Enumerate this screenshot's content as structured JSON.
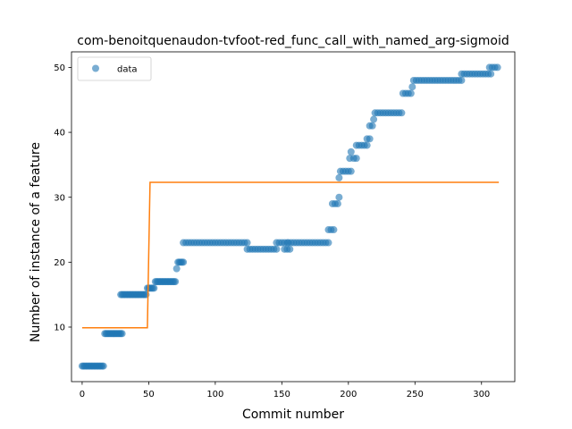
{
  "chart_data": {
    "type": "scatter",
    "title": "com-benoitquenaudon-tvfoot-red_func_call_with_named_arg-sigmoid",
    "xlabel": "Commit number",
    "ylabel": "Number of instance of a feature",
    "xlim": [
      -8,
      325
    ],
    "ylim": [
      1.6,
      52.4
    ],
    "xticks": [
      0,
      50,
      100,
      150,
      200,
      250,
      300
    ],
    "yticks": [
      10,
      20,
      30,
      40,
      50
    ],
    "grid": false,
    "legend": {
      "position": "upper left",
      "entries": [
        "data"
      ]
    },
    "colors": {
      "data": "#1f77b4",
      "fit": "#ff7f0e"
    },
    "series": [
      {
        "name": "data",
        "kind": "scatter",
        "points": [
          [
            0,
            4
          ],
          [
            1,
            4
          ],
          [
            2,
            4
          ],
          [
            3,
            4
          ],
          [
            4,
            4
          ],
          [
            5,
            4
          ],
          [
            6,
            4
          ],
          [
            7,
            4
          ],
          [
            8,
            4
          ],
          [
            9,
            4
          ],
          [
            10,
            4
          ],
          [
            11,
            4
          ],
          [
            12,
            4
          ],
          [
            13,
            4
          ],
          [
            14,
            4
          ],
          [
            15,
            4
          ],
          [
            16,
            4
          ],
          [
            17,
            9
          ],
          [
            18,
            9
          ],
          [
            19,
            9
          ],
          [
            20,
            9
          ],
          [
            21,
            9
          ],
          [
            22,
            9
          ],
          [
            23,
            9
          ],
          [
            24,
            9
          ],
          [
            25,
            9
          ],
          [
            26,
            9
          ],
          [
            27,
            9
          ],
          [
            28,
            9
          ],
          [
            29,
            9
          ],
          [
            30,
            9
          ],
          [
            29,
            15
          ],
          [
            30,
            15
          ],
          [
            31,
            15
          ],
          [
            32,
            15
          ],
          [
            33,
            15
          ],
          [
            34,
            15
          ],
          [
            35,
            15
          ],
          [
            36,
            15
          ],
          [
            37,
            15
          ],
          [
            38,
            15
          ],
          [
            39,
            15
          ],
          [
            40,
            15
          ],
          [
            41,
            15
          ],
          [
            42,
            15
          ],
          [
            43,
            15
          ],
          [
            44,
            15
          ],
          [
            45,
            15
          ],
          [
            46,
            15
          ],
          [
            47,
            15
          ],
          [
            48,
            15
          ],
          [
            49,
            16
          ],
          [
            50,
            16
          ],
          [
            51,
            16
          ],
          [
            52,
            16
          ],
          [
            53,
            16
          ],
          [
            54,
            16
          ],
          [
            55,
            17
          ],
          [
            56,
            17
          ],
          [
            57,
            17
          ],
          [
            58,
            17
          ],
          [
            59,
            17
          ],
          [
            60,
            17
          ],
          [
            61,
            17
          ],
          [
            62,
            17
          ],
          [
            63,
            17
          ],
          [
            64,
            17
          ],
          [
            65,
            17
          ],
          [
            66,
            17
          ],
          [
            67,
            17
          ],
          [
            68,
            17
          ],
          [
            69,
            17
          ],
          [
            70,
            17
          ],
          [
            71,
            19
          ],
          [
            72,
            20
          ],
          [
            73,
            20
          ],
          [
            74,
            20
          ],
          [
            75,
            20
          ],
          [
            76,
            20
          ],
          [
            76,
            23
          ],
          [
            78,
            23
          ],
          [
            80,
            23
          ],
          [
            82,
            23
          ],
          [
            84,
            23
          ],
          [
            86,
            23
          ],
          [
            88,
            23
          ],
          [
            90,
            23
          ],
          [
            92,
            23
          ],
          [
            94,
            23
          ],
          [
            96,
            23
          ],
          [
            98,
            23
          ],
          [
            100,
            23
          ],
          [
            102,
            23
          ],
          [
            104,
            23
          ],
          [
            106,
            23
          ],
          [
            108,
            23
          ],
          [
            110,
            23
          ],
          [
            112,
            23
          ],
          [
            114,
            23
          ],
          [
            116,
            23
          ],
          [
            118,
            23
          ],
          [
            120,
            23
          ],
          [
            122,
            23
          ],
          [
            124,
            23
          ],
          [
            124,
            22
          ],
          [
            126,
            22
          ],
          [
            128,
            22
          ],
          [
            130,
            22
          ],
          [
            132,
            22
          ],
          [
            134,
            22
          ],
          [
            136,
            22
          ],
          [
            138,
            22
          ],
          [
            140,
            22
          ],
          [
            142,
            22
          ],
          [
            144,
            22
          ],
          [
            146,
            22
          ],
          [
            146,
            23
          ],
          [
            148,
            23
          ],
          [
            150,
            23
          ],
          [
            152,
            23
          ],
          [
            154,
            23
          ],
          [
            152,
            22
          ],
          [
            154,
            22
          ],
          [
            156,
            22
          ],
          [
            155,
            23
          ],
          [
            157,
            23
          ],
          [
            159,
            23
          ],
          [
            161,
            23
          ],
          [
            163,
            23
          ],
          [
            165,
            23
          ],
          [
            167,
            23
          ],
          [
            169,
            23
          ],
          [
            171,
            23
          ],
          [
            173,
            23
          ],
          [
            175,
            23
          ],
          [
            177,
            23
          ],
          [
            179,
            23
          ],
          [
            181,
            23
          ],
          [
            183,
            23
          ],
          [
            185,
            23
          ],
          [
            185,
            25
          ],
          [
            187,
            25
          ],
          [
            189,
            25
          ],
          [
            188,
            29
          ],
          [
            190,
            29
          ],
          [
            192,
            29
          ],
          [
            193,
            30
          ],
          [
            193,
            33
          ],
          [
            194,
            34
          ],
          [
            196,
            34
          ],
          [
            198,
            34
          ],
          [
            200,
            34
          ],
          [
            202,
            34
          ],
          [
            201,
            36
          ],
          [
            202,
            37
          ],
          [
            204,
            36
          ],
          [
            206,
            36
          ],
          [
            206,
            38
          ],
          [
            208,
            38
          ],
          [
            210,
            38
          ],
          [
            212,
            38
          ],
          [
            214,
            38
          ],
          [
            214,
            39
          ],
          [
            216,
            39
          ],
          [
            216,
            41
          ],
          [
            218,
            41
          ],
          [
            219,
            42
          ],
          [
            220,
            43
          ],
          [
            222,
            43
          ],
          [
            224,
            43
          ],
          [
            226,
            43
          ],
          [
            228,
            43
          ],
          [
            230,
            43
          ],
          [
            232,
            43
          ],
          [
            234,
            43
          ],
          [
            236,
            43
          ],
          [
            238,
            43
          ],
          [
            240,
            43
          ],
          [
            241,
            46
          ],
          [
            243,
            46
          ],
          [
            245,
            46
          ],
          [
            247,
            46
          ],
          [
            248,
            47
          ],
          [
            249,
            48
          ],
          [
            251,
            48
          ],
          [
            253,
            48
          ],
          [
            255,
            48
          ],
          [
            257,
            48
          ],
          [
            259,
            48
          ],
          [
            261,
            48
          ],
          [
            263,
            48
          ],
          [
            265,
            48
          ],
          [
            267,
            48
          ],
          [
            269,
            48
          ],
          [
            271,
            48
          ],
          [
            273,
            48
          ],
          [
            275,
            48
          ],
          [
            277,
            48
          ],
          [
            279,
            48
          ],
          [
            281,
            48
          ],
          [
            283,
            48
          ],
          [
            285,
            48
          ],
          [
            285,
            49
          ],
          [
            287,
            49
          ],
          [
            289,
            49
          ],
          [
            291,
            49
          ],
          [
            293,
            49
          ],
          [
            295,
            49
          ],
          [
            297,
            49
          ],
          [
            299,
            49
          ],
          [
            301,
            49
          ],
          [
            303,
            49
          ],
          [
            305,
            49
          ],
          [
            307,
            49
          ],
          [
            306,
            50
          ],
          [
            308,
            50
          ],
          [
            310,
            50
          ],
          [
            312,
            50
          ]
        ]
      },
      {
        "kind": "line",
        "points": [
          [
            0,
            9.9
          ],
          [
            49,
            9.9
          ],
          [
            51,
            32.3
          ],
          [
            313,
            32.3
          ]
        ]
      }
    ]
  }
}
